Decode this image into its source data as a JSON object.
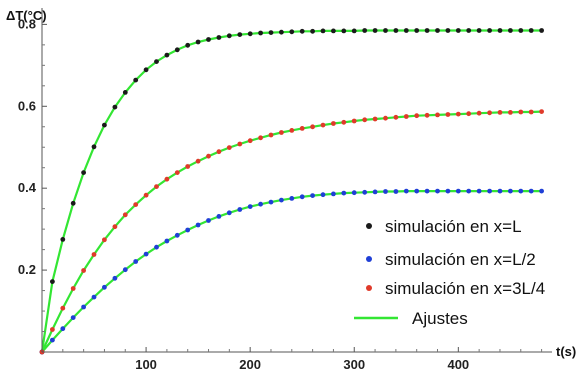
{
  "chart_data": {
    "type": "scatter",
    "ylabel": "ΔT(°C)",
    "xlabel": "t(s)",
    "xlim": [
      0,
      490
    ],
    "ylim": [
      0,
      0.84
    ],
    "x_ticks": [
      100,
      200,
      300,
      400
    ],
    "y_ticks": [
      0.2,
      0.4,
      0.6,
      0.8
    ],
    "y_tick_labels": [
      "0.2",
      "0.4",
      "0.6",
      "0.8"
    ],
    "x_tick_labels": [
      "100",
      "200",
      "300",
      "400"
    ],
    "legend_position": "right",
    "series": [
      {
        "name": "simulación en x=L",
        "color": "#1a1a1a",
        "x": [
          0,
          10,
          20,
          30,
          40,
          50,
          60,
          70,
          80,
          90,
          100,
          110,
          120,
          130,
          140,
          150,
          160,
          170,
          180,
          190,
          200,
          210,
          220,
          230,
          240,
          250,
          260,
          270,
          280,
          290,
          300,
          310,
          320,
          330,
          340,
          350,
          360,
          370,
          380,
          390,
          400,
          410,
          420,
          430,
          440,
          450,
          460,
          470,
          480
        ],
        "y": [
          0.0,
          0.172,
          0.275,
          0.363,
          0.438,
          0.501,
          0.554,
          0.598,
          0.634,
          0.664,
          0.689,
          0.709,
          0.725,
          0.738,
          0.749,
          0.757,
          0.763,
          0.768,
          0.772,
          0.775,
          0.777,
          0.779,
          0.78,
          0.781,
          0.782,
          0.783,
          0.783,
          0.784,
          0.784,
          0.784,
          0.784,
          0.785,
          0.785,
          0.785,
          0.785,
          0.785,
          0.785,
          0.785,
          0.785,
          0.785,
          0.785,
          0.785,
          0.785,
          0.785,
          0.785,
          0.785,
          0.785,
          0.785,
          0.785
        ]
      },
      {
        "name": "simulación en x=L/2",
        "color": "#1f3fd6",
        "x": [
          0,
          10,
          20,
          30,
          40,
          50,
          60,
          70,
          80,
          90,
          100,
          110,
          120,
          130,
          140,
          150,
          160,
          170,
          180,
          190,
          200,
          210,
          220,
          230,
          240,
          250,
          260,
          270,
          280,
          290,
          300,
          310,
          320,
          330,
          340,
          350,
          360,
          370,
          380,
          390,
          400,
          410,
          420,
          430,
          440,
          450,
          460,
          470,
          480
        ],
        "y": [
          0.0,
          0.029,
          0.057,
          0.084,
          0.11,
          0.134,
          0.158,
          0.18,
          0.201,
          0.221,
          0.239,
          0.256,
          0.271,
          0.285,
          0.298,
          0.31,
          0.321,
          0.331,
          0.34,
          0.348,
          0.355,
          0.361,
          0.366,
          0.371,
          0.375,
          0.379,
          0.382,
          0.384,
          0.386,
          0.388,
          0.389,
          0.39,
          0.391,
          0.392,
          0.392,
          0.393,
          0.393,
          0.393,
          0.393,
          0.393,
          0.393,
          0.393,
          0.393,
          0.393,
          0.393,
          0.393,
          0.393,
          0.393,
          0.393
        ]
      },
      {
        "name": "simulación en x=3L/4",
        "color": "#e03a2a",
        "x": [
          0,
          10,
          20,
          30,
          40,
          50,
          60,
          70,
          80,
          90,
          100,
          110,
          120,
          130,
          140,
          150,
          160,
          170,
          180,
          190,
          200,
          210,
          220,
          230,
          240,
          250,
          260,
          270,
          280,
          290,
          300,
          310,
          320,
          330,
          340,
          350,
          360,
          370,
          380,
          390,
          400,
          410,
          420,
          430,
          440,
          450,
          460,
          470,
          480
        ],
        "y": [
          0.0,
          0.055,
          0.107,
          0.155,
          0.199,
          0.238,
          0.274,
          0.306,
          0.335,
          0.36,
          0.383,
          0.404,
          0.422,
          0.438,
          0.453,
          0.466,
          0.478,
          0.489,
          0.499,
          0.508,
          0.516,
          0.523,
          0.53,
          0.536,
          0.541,
          0.546,
          0.55,
          0.554,
          0.558,
          0.561,
          0.564,
          0.567,
          0.569,
          0.571,
          0.573,
          0.575,
          0.577,
          0.578,
          0.579,
          0.58,
          0.581,
          0.582,
          0.583,
          0.584,
          0.585,
          0.585,
          0.586,
          0.586,
          0.587
        ]
      },
      {
        "name": "Ajustes",
        "color": "#33e633",
        "style": "line"
      }
    ]
  }
}
